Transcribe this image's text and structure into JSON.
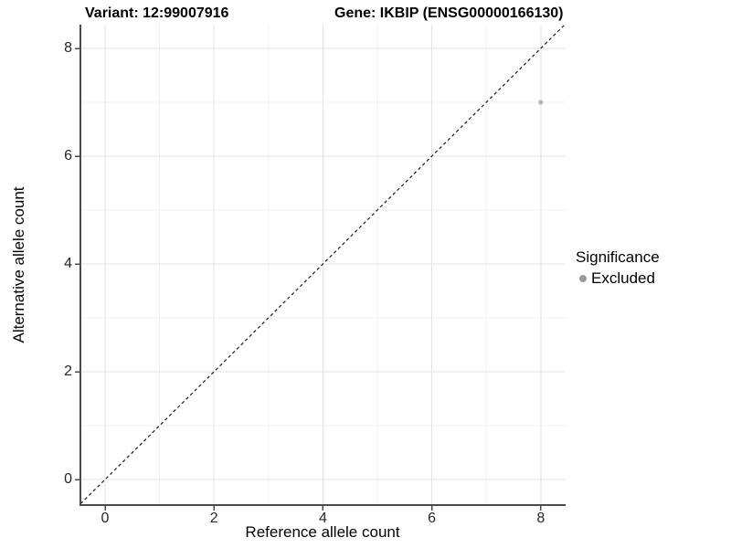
{
  "colors": {
    "background": "#ffffff",
    "grid_major": "#e3e3e3",
    "grid_minor": "#f0f0f0",
    "axis": "#4a4a4a",
    "tick_mark": "#4a4a4a",
    "tick_label": "#262626",
    "dashed_line": "#1a1a1a",
    "point": "#b4b4b4",
    "legend_point": "#9b9b9b"
  },
  "chart_data": {
    "type": "scatter",
    "title_left": "Variant: 12:99007916",
    "title_right": "Gene: IKBIP (ENSG00000166130)",
    "xlabel": "Reference allele count",
    "ylabel": "Alternative allele count",
    "x_ticks": [
      0,
      2,
      4,
      6,
      8
    ],
    "y_ticks": [
      0,
      2,
      4,
      6,
      8
    ],
    "x_tick_labels": [
      "0",
      "2",
      "4",
      "6",
      "8"
    ],
    "y_tick_labels": [
      "0",
      "2",
      "4",
      "6",
      "8"
    ],
    "x_minor": [
      1,
      3,
      5,
      7
    ],
    "y_minor": [
      1,
      3,
      5,
      7
    ],
    "xlim": [
      -0.45,
      8.45
    ],
    "ylim": [
      -0.47,
      8.44
    ],
    "grid": true,
    "identity_line": {
      "equation": "y = x",
      "style": "dashed"
    },
    "series": [
      {
        "name": "Excluded",
        "color": "#b4b4b4",
        "points": [
          {
            "x": 8,
            "y": 7
          }
        ]
      }
    ],
    "legend": {
      "title": "Significance",
      "position": "right",
      "items": [
        {
          "label": "Excluded",
          "color": "#9b9b9b"
        }
      ]
    }
  }
}
